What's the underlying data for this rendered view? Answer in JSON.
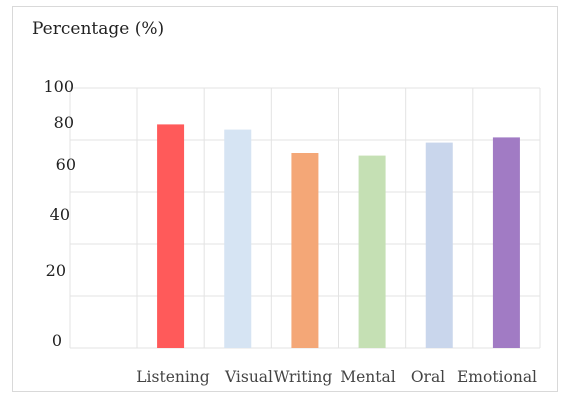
{
  "chart_data": {
    "type": "bar",
    "ylabel": "Percentage (%)",
    "xlabel": "",
    "categories": [
      "Listening",
      "Visual",
      "Writing",
      "Mental",
      "Oral",
      "Emotional"
    ],
    "values": [
      86,
      84,
      75,
      74,
      79,
      81
    ],
    "colors": [
      "#ff5a5a",
      "#d6e4f3",
      "#f4a777",
      "#c5e0b4",
      "#c9d6ec",
      "#a17bc4"
    ],
    "ylim": [
      0,
      100
    ],
    "yticks": [
      0,
      20,
      40,
      60,
      80,
      100
    ],
    "grid": true,
    "legend": "none"
  }
}
